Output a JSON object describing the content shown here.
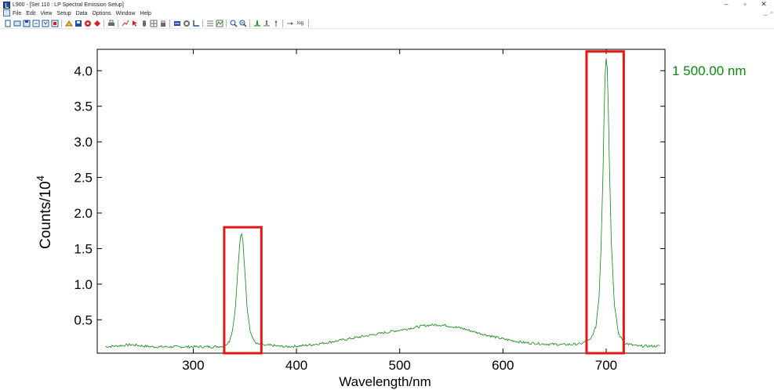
{
  "window": {
    "title": "L900 - [Set 110 : LP Spectral Emission Setup]",
    "minimize_glyph": "–",
    "maximize_glyph": "▫",
    "close_glyph": "✕",
    "mdi_minimize_glyph": "_",
    "mdi_restore_glyph": "▫"
  },
  "menu": {
    "items": [
      "File",
      "Edit",
      "View",
      "Setup",
      "Data",
      "Options",
      "Window",
      "Help"
    ]
  },
  "toolbar": {
    "groups": [
      [
        "new-icon",
        "open-icon",
        "save-icon",
        "export-icon",
        "import-icon",
        "setup-icon"
      ],
      [
        "run-icon",
        "save-disk-icon",
        "acquire-icon",
        "stop-icon"
      ],
      [
        "print-icon"
      ],
      [
        "graph-icon",
        "cursor-icon",
        "hand-icon",
        "grid-icon",
        "lock-icon"
      ],
      [
        "data-icon",
        "settings-icon",
        "axes-icon"
      ],
      [
        "list-icon",
        "chart-icon"
      ],
      [
        "zoom-in-icon",
        "zoom-out-icon"
      ],
      [
        "peak-icon",
        "peak-label-icon",
        "peak-pick-icon"
      ],
      [
        "linear-scale-icon",
        "log-scale-icon"
      ]
    ],
    "log_label": "log",
    "colors": {
      "red": "#d42020",
      "blue": "#1f4fa8",
      "green": "#2a8a2a",
      "gray": "#6b6b6b"
    }
  },
  "chart_data": {
    "type": "line",
    "xlabel": "Wavelength/nm",
    "ylabel": "Counts/10",
    "ylabel_exponent": "4",
    "x_ticks": [
      300,
      400,
      500,
      600,
      700
    ],
    "y_ticks": [
      0.5,
      1.0,
      1.5,
      2.0,
      2.5,
      3.0,
      3.5,
      4.0
    ],
    "y_tick_labels": [
      "0.5",
      "1.0",
      "1.5",
      "2.0",
      "2.5",
      "3.0",
      "3.5",
      "4.0"
    ],
    "xlim": [
      207,
      757
    ],
    "ylim": [
      0.03,
      4.3
    ],
    "grid": false,
    "series": [
      {
        "color": "#0a8a0a",
        "x": [
          215,
          240,
          260,
          280,
          300,
          320,
          330,
          335,
          338,
          341,
          343,
          345,
          346,
          347,
          348,
          350,
          352,
          355,
          358,
          362,
          368,
          375,
          390,
          410,
          430,
          450,
          470,
          490,
          510,
          525,
          535,
          545,
          560,
          580,
          600,
          620,
          640,
          660,
          675,
          685,
          690,
          693,
          695,
          697,
          698,
          699,
          700,
          701,
          702,
          703,
          705,
          708,
          712,
          718,
          730,
          745,
          752
        ],
        "y": [
          0.12,
          0.15,
          0.12,
          0.12,
          0.12,
          0.12,
          0.13,
          0.2,
          0.35,
          0.7,
          1.15,
          1.55,
          1.68,
          1.71,
          1.62,
          1.2,
          0.7,
          0.35,
          0.22,
          0.16,
          0.14,
          0.14,
          0.12,
          0.14,
          0.18,
          0.23,
          0.28,
          0.33,
          0.38,
          0.42,
          0.43,
          0.42,
          0.38,
          0.3,
          0.23,
          0.18,
          0.16,
          0.15,
          0.16,
          0.22,
          0.4,
          0.8,
          1.5,
          2.6,
          3.4,
          3.95,
          4.18,
          4.05,
          3.55,
          2.8,
          1.6,
          0.7,
          0.3,
          0.17,
          0.13,
          0.13,
          0.13
        ]
      }
    ],
    "marker_label": "1 500.00 nm",
    "marker_color": "#0a8a0a",
    "highlight_color": "#e01818",
    "highlights": [
      {
        "x_range": [
          330,
          366
        ],
        "y_range": [
          0.03,
          1.8
        ]
      },
      {
        "x_range": [
          681,
          717
        ],
        "y_range": [
          0.03,
          4.27
        ]
      }
    ]
  }
}
